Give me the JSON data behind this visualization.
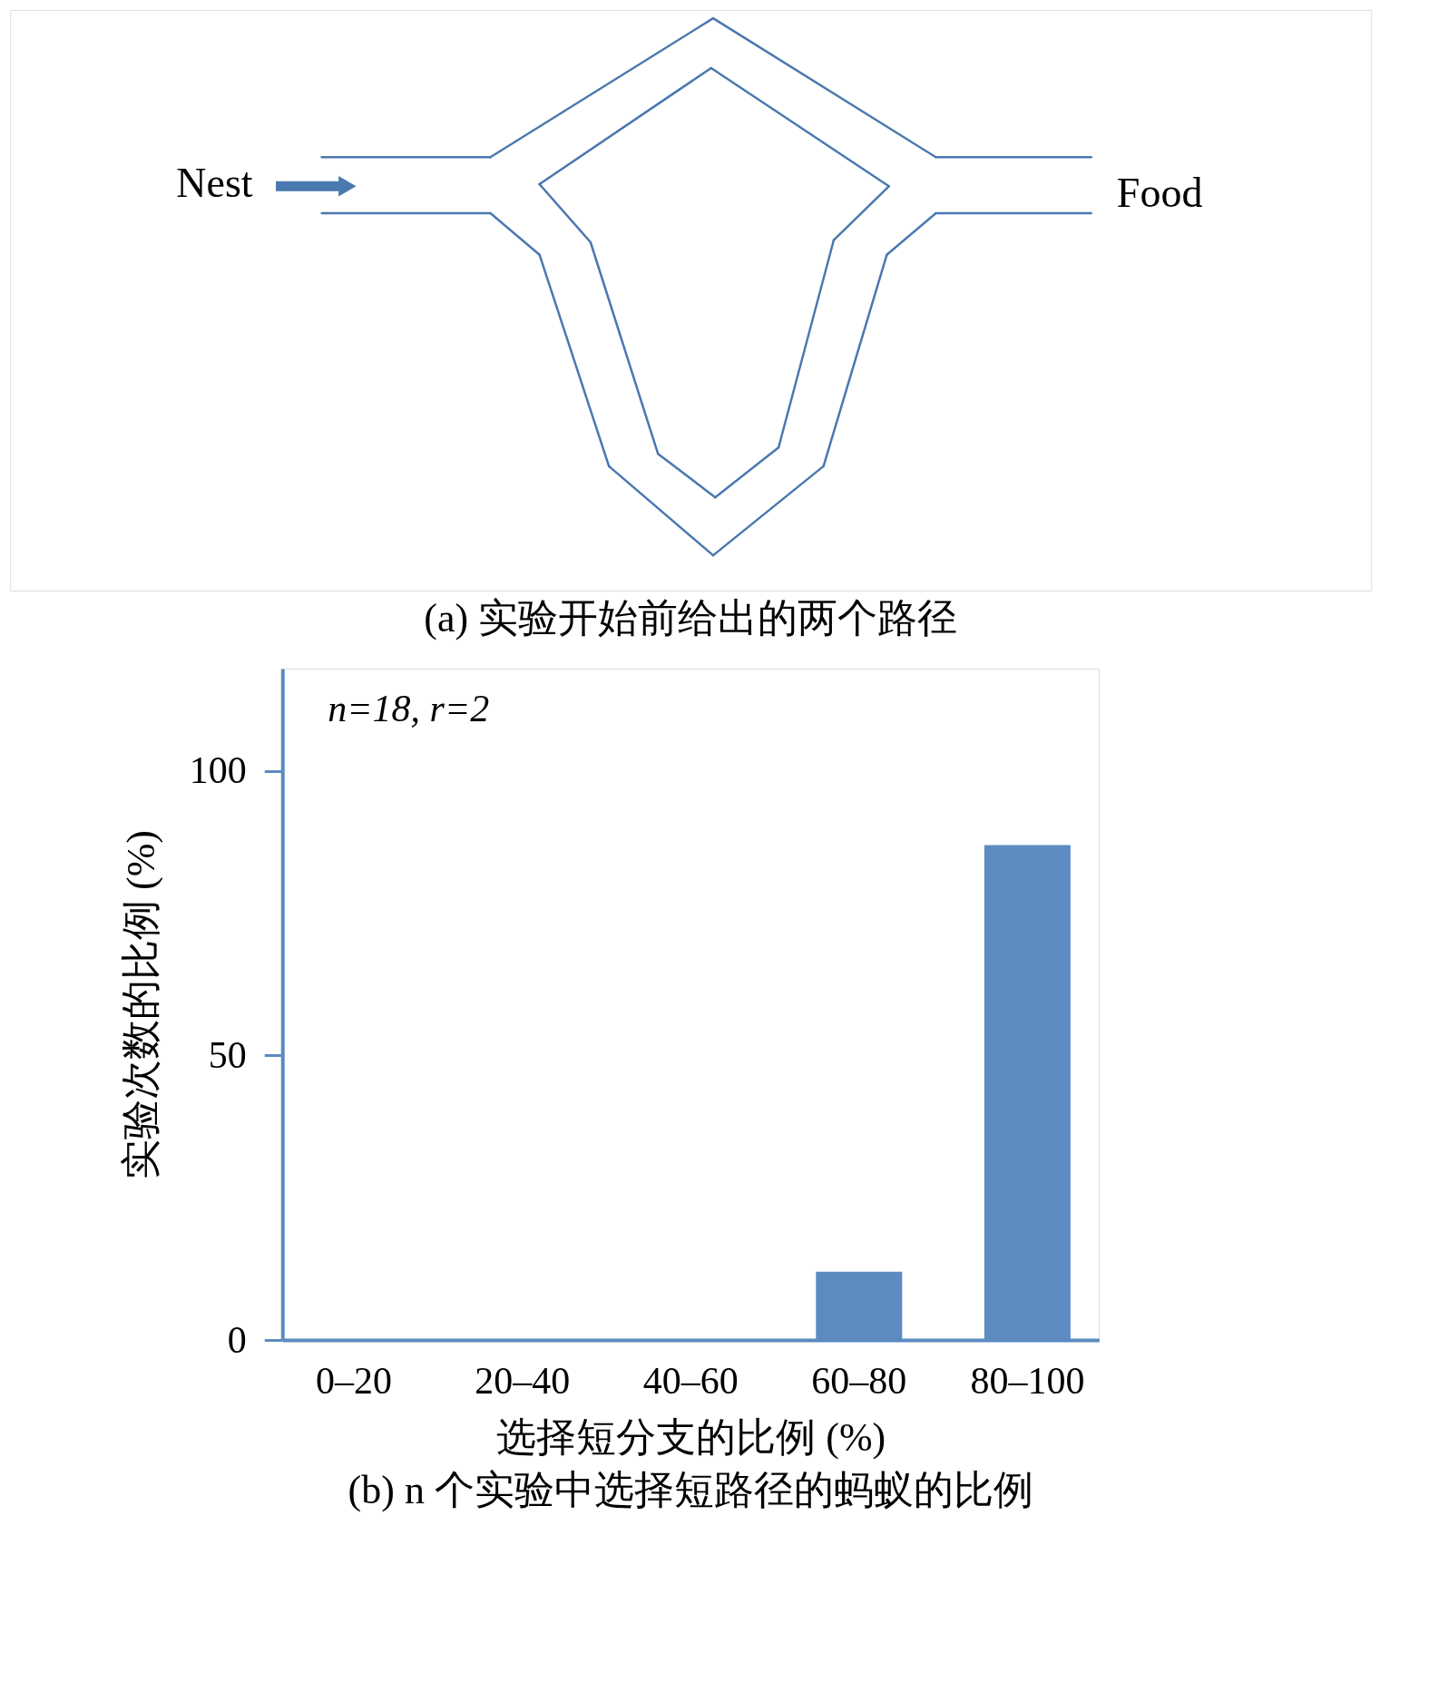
{
  "chart_data": [
    {
      "type": "other",
      "title": "(a) 实验开始前给出的两个路径",
      "annotations": [
        "Nest",
        "Food"
      ]
    },
    {
      "type": "bar",
      "title": "(b) n 个实验中选择短路径的蚂蚁的比例",
      "xlabel": "选择短分支的比例 (%)",
      "ylabel": "实验次数的比例 (%)",
      "categories": [
        "0–20",
        "20–40",
        "40–60",
        "60–80",
        "80–100"
      ],
      "values": [
        0,
        0,
        0,
        12,
        87
      ],
      "color": "#5b8bc0",
      "ylim": [
        0,
        118
      ],
      "yticks": [
        0,
        50,
        100
      ],
      "grid": false,
      "annotations": [
        "n=18, r=2"
      ]
    }
  ]
}
